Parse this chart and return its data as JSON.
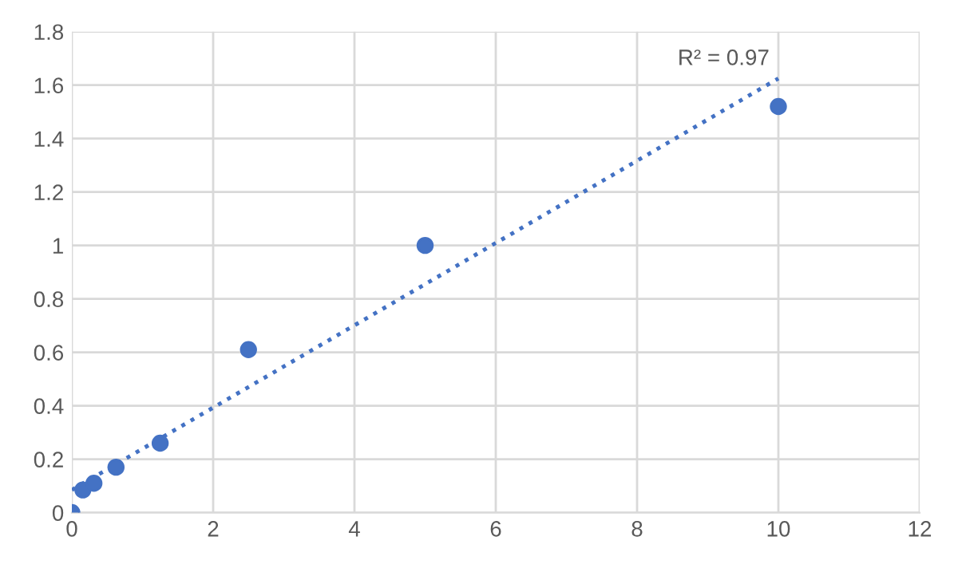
{
  "chart_data": {
    "type": "scatter",
    "series": [
      {
        "color": "#4472c4",
        "marker": "circle",
        "x": [
          0,
          0.156,
          0.3125,
          0.625,
          1.25,
          2.5,
          5,
          10
        ],
        "values": [
          0,
          0.085,
          0.11,
          0.17,
          0.26,
          0.61,
          1.0,
          1.52
        ]
      },
      {
        "type": "line",
        "color": "#4472c4",
        "line_style": "dotted",
        "marker": "none",
        "x": [
          0,
          10
        ],
        "values": [
          0.085,
          1.625
        ]
      }
    ],
    "annotations": [
      {
        "text": "R² = 0.97",
        "x": 10,
        "y": 1.625
      }
    ],
    "xlim": [
      0,
      12
    ],
    "xticks": [
      0,
      2,
      4,
      6,
      8,
      10,
      12
    ],
    "ylim": [
      0,
      1.8
    ],
    "yticks": [
      0,
      0.2,
      0.4,
      0.6,
      0.8,
      1,
      1.2,
      1.4,
      1.6,
      1.8
    ],
    "grid": true
  }
}
